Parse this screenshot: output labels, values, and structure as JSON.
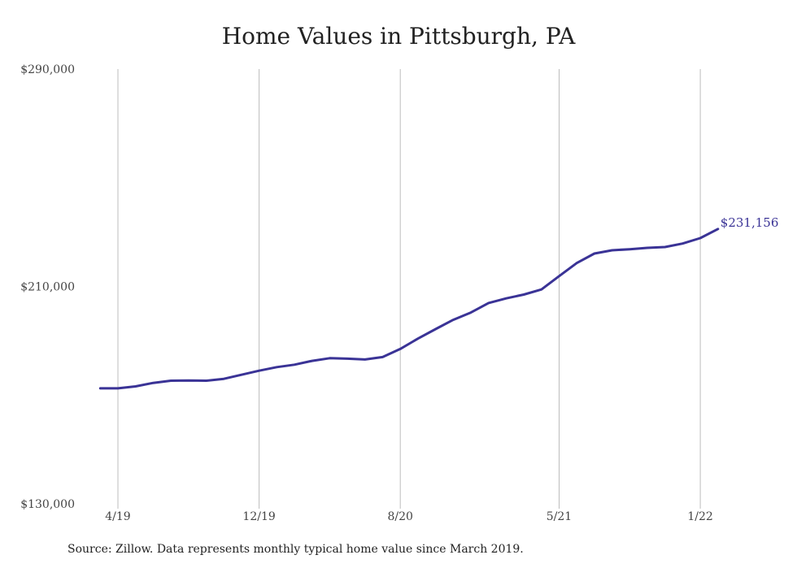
{
  "chart_data": {
    "type": "line",
    "title": "Home Values in Pittsburgh, PA",
    "xlabel": "",
    "ylabel": "",
    "ylim": [
      130000,
      290000
    ],
    "y_ticks": [
      {
        "value": 130000,
        "label": "$130,000"
      },
      {
        "value": 210000,
        "label": "$210,000"
      },
      {
        "value": 290000,
        "label": "$290,000"
      }
    ],
    "x_ticks": [
      {
        "date": "2019-04",
        "label": "4/19"
      },
      {
        "date": "2019-12",
        "label": "12/19"
      },
      {
        "date": "2020-08",
        "label": "8/20"
      },
      {
        "date": "2021-05",
        "label": "5/21"
      },
      {
        "date": "2022-01",
        "label": "1/22"
      }
    ],
    "grid": {
      "vertical": true,
      "horizontal": false
    },
    "series": [
      {
        "color": "#3a3396",
        "points": [
          {
            "x": "2019-03",
            "y": 172500
          },
          {
            "x": "2019-04",
            "y": 172500
          },
          {
            "x": "2019-05",
            "y": 173200
          },
          {
            "x": "2019-06",
            "y": 174500
          },
          {
            "x": "2019-07",
            "y": 175300
          },
          {
            "x": "2019-08",
            "y": 175400
          },
          {
            "x": "2019-09",
            "y": 175300
          },
          {
            "x": "2019-10",
            "y": 176000
          },
          {
            "x": "2019-11",
            "y": 177500
          },
          {
            "x": "2019-12",
            "y": 179000
          },
          {
            "x": "2020-01",
            "y": 180300
          },
          {
            "x": "2020-02",
            "y": 181200
          },
          {
            "x": "2020-03",
            "y": 182600
          },
          {
            "x": "2020-04",
            "y": 183600
          },
          {
            "x": "2020-05",
            "y": 183400
          },
          {
            "x": "2020-06",
            "y": 183100
          },
          {
            "x": "2020-07",
            "y": 184000
          },
          {
            "x": "2020-08",
            "y": 187000
          },
          {
            "x": "2020-09",
            "y": 190800
          },
          {
            "x": "2020-10",
            "y": 194300
          },
          {
            "x": "2020-11",
            "y": 197700
          },
          {
            "x": "2020-12",
            "y": 200400
          },
          {
            "x": "2021-01",
            "y": 203900
          },
          {
            "x": "2021-02",
            "y": 205600
          },
          {
            "x": "2021-03",
            "y": 207000
          },
          {
            "x": "2021-04",
            "y": 208900
          },
          {
            "x": "2021-05",
            "y": 213800
          },
          {
            "x": "2021-06",
            "y": 218600
          },
          {
            "x": "2021-07",
            "y": 222100
          },
          {
            "x": "2021-08",
            "y": 223300
          },
          {
            "x": "2021-09",
            "y": 223700
          },
          {
            "x": "2021-10",
            "y": 224200
          },
          {
            "x": "2021-11",
            "y": 224500
          },
          {
            "x": "2021-12",
            "y": 225800
          },
          {
            "x": "2022-01",
            "y": 227800
          },
          {
            "x": "2022-02",
            "y": 231156
          }
        ]
      }
    ],
    "last_value_label": "$231,156"
  },
  "source_note": "Source: Zillow. Data represents monthly typical home value since March 2019."
}
